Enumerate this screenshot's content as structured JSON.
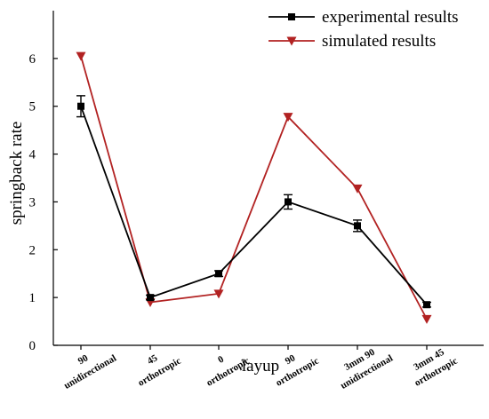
{
  "chart_data": {
    "type": "line",
    "xlabel": "layup",
    "ylabel": "springback rate",
    "ylim": [
      0,
      7
    ],
    "yticks": [
      0,
      1,
      2,
      3,
      4,
      5,
      6
    ],
    "grid": false,
    "legend_position": "top-right",
    "categories": [
      {
        "top": "90",
        "bottom": "unidirectional"
      },
      {
        "top": "45",
        "bottom": "orthotropic"
      },
      {
        "top": "0",
        "bottom": "orthotropic"
      },
      {
        "top": "90",
        "bottom": "orthotropic"
      },
      {
        "top": "3mm 90",
        "bottom": "unidirectional"
      },
      {
        "top": "3mm 45",
        "bottom": "orthotropic"
      }
    ],
    "series": [
      {
        "name": "experimental results",
        "color": "#000000",
        "marker": "square",
        "values": [
          5.0,
          1.0,
          1.5,
          3.0,
          2.5,
          0.85
        ],
        "error": [
          0.22,
          0.05,
          0.06,
          0.15,
          0.12,
          0.05
        ]
      },
      {
        "name": "simulated results",
        "color": "#b22222",
        "marker": "triangle-down",
        "values": [
          6.05,
          0.9,
          1.08,
          4.78,
          3.28,
          0.55
        ]
      }
    ]
  }
}
